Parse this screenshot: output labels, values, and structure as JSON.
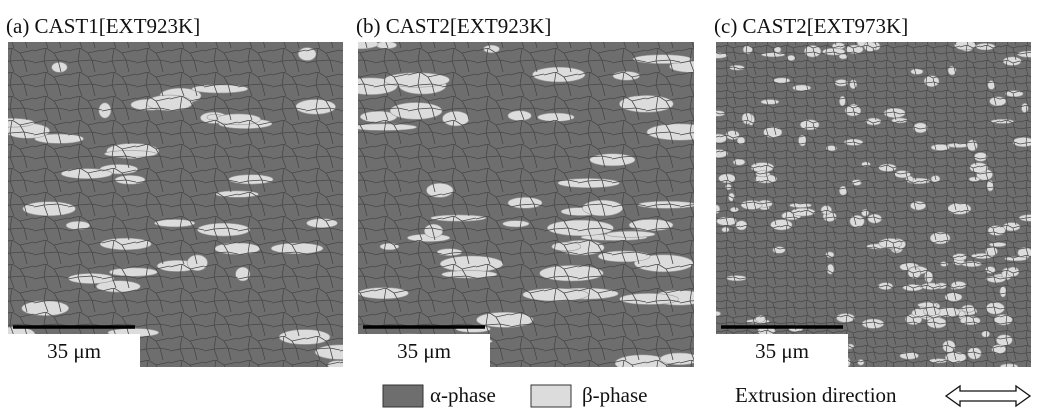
{
  "panels": [
    {
      "label": "(a) CAST1[EXT923K]",
      "scale_bar": "35 μm"
    },
    {
      "label": "(b) CAST2[EXT923K]",
      "scale_bar": "35 μm"
    },
    {
      "label": "(c) CAST2[EXT973K]",
      "scale_bar": "35 μm"
    }
  ],
  "legend": {
    "items": [
      {
        "label": "α-phase"
      },
      {
        "label": "β-phase"
      }
    ],
    "direction": "Extrusion direction"
  }
}
